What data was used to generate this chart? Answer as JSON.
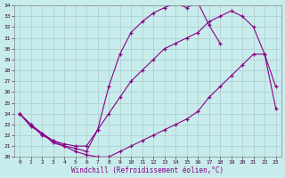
{
  "xlabel": "Windchill (Refroidissement éolien,°C)",
  "xlim": [
    -0.5,
    23.5
  ],
  "ylim": [
    20,
    34
  ],
  "xticks": [
    0,
    1,
    2,
    3,
    4,
    5,
    6,
    7,
    8,
    9,
    10,
    11,
    12,
    13,
    14,
    15,
    16,
    17,
    18,
    19,
    20,
    21,
    22,
    23
  ],
  "yticks": [
    20,
    21,
    22,
    23,
    24,
    25,
    26,
    27,
    28,
    29,
    30,
    31,
    32,
    33,
    34
  ],
  "bg_color": "#c8ecec",
  "grid_color": "#aacccc",
  "line_color": "#880088",
  "curve1_x": [
    0,
    1,
    2,
    3,
    4,
    5,
    6,
    7,
    8,
    9,
    10,
    11,
    12,
    13,
    14,
    15,
    16,
    17,
    18,
    19,
    20,
    21,
    22,
    23
  ],
  "curve1_y": [
    24.0,
    23.0,
    22.2,
    21.5,
    21.2,
    21.0,
    21.0,
    22.5,
    24.0,
    25.5,
    27.0,
    28.0,
    29.0,
    30.0,
    30.5,
    31.0,
    31.5,
    32.5,
    33.0,
    33.5,
    33.0,
    32.0,
    29.5,
    26.5
  ],
  "curve2_x": [
    0,
    1,
    2,
    3,
    4,
    5,
    6,
    7,
    8,
    9,
    10,
    11,
    12,
    13,
    14,
    15,
    16,
    17,
    18,
    19,
    20,
    21,
    22,
    23
  ],
  "curve2_y": [
    24.0,
    22.8,
    22.2,
    21.3,
    21.0,
    20.5,
    20.2,
    20.0,
    20.0,
    20.5,
    21.0,
    21.5,
    22.0,
    22.5,
    23.0,
    23.5,
    24.2,
    25.5,
    26.5,
    27.5,
    28.5,
    29.5,
    29.5,
    24.5
  ],
  "curve3_x": [
    0,
    1,
    2,
    3,
    4,
    5,
    6,
    7,
    8,
    9,
    10,
    11,
    12,
    13,
    14,
    15,
    16,
    17,
    18
  ],
  "curve3_y": [
    24.0,
    23.0,
    22.0,
    21.5,
    21.0,
    20.8,
    20.5,
    22.5,
    26.5,
    29.5,
    31.5,
    32.5,
    33.3,
    33.8,
    34.2,
    33.8,
    34.3,
    32.2,
    30.5
  ]
}
